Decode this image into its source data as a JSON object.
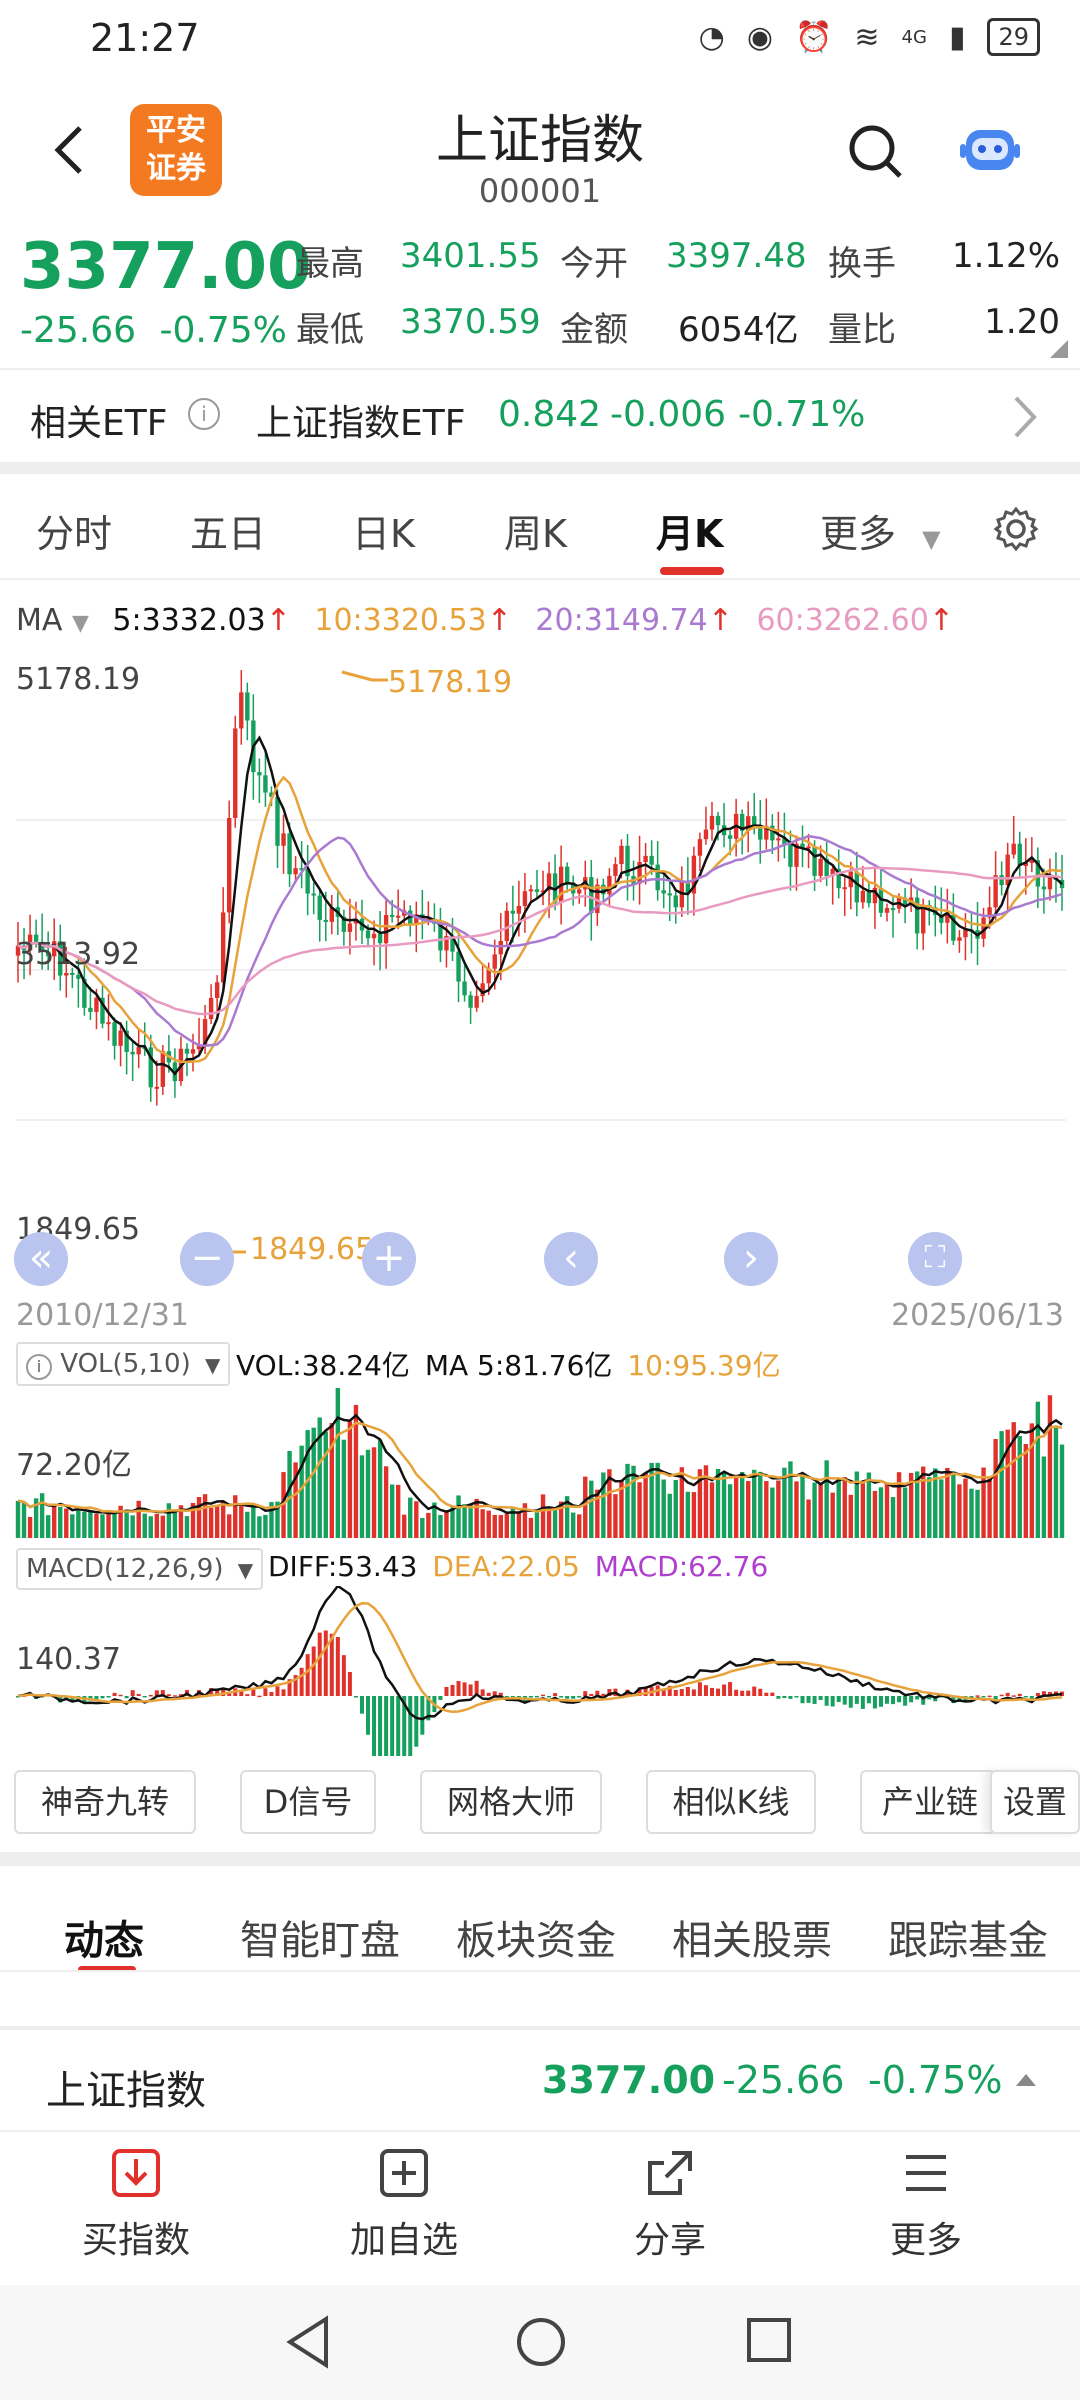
{
  "status_bar": {
    "time": "21:27",
    "battery": "29",
    "network": "4G"
  },
  "header": {
    "title": "上证指数",
    "code": "000001",
    "logo_text": [
      "平安",
      "证券"
    ]
  },
  "quote": {
    "price": "3377.00",
    "change": "-25.66",
    "change_pct": "-0.75%",
    "fields": [
      {
        "label": "最高",
        "value": "3401.55"
      },
      {
        "label": "今开",
        "value": "3397.48"
      },
      {
        "label": "换手",
        "value": "1.12%"
      },
      {
        "label": "最低",
        "value": "3370.59"
      },
      {
        "label": "金额",
        "value": "6054亿"
      },
      {
        "label": "量比",
        "value": "1.20"
      }
    ]
  },
  "etf": {
    "label": "相关ETF",
    "name": "上证指数ETF",
    "price": "0.842",
    "change": "-0.006",
    "change_pct": "-0.71%"
  },
  "tabs": [
    "分时",
    "五日",
    "日K",
    "周K",
    "月K",
    "更多"
  ],
  "active_tab": "月K",
  "ma_legend": {
    "title": "MA",
    "ma5": "5:3332.03",
    "ma10": "10:3320.53",
    "ma20": "20:3149.74",
    "ma60": "60:3262.60"
  },
  "main_chart": {
    "y_labels": [
      "5178.19",
      "3513.92",
      "1849.65"
    ],
    "max_marker": "5178.19",
    "min_marker": "1849.65",
    "start_date": "2010/12/31",
    "end_date": "2025/06/13"
  },
  "vol": {
    "selector": "VOL(5,10)",
    "vol": "VOL:38.24亿",
    "ma5": "MA 5:81.76亿",
    "ma10": "10:95.39亿",
    "y_label": "72.20亿"
  },
  "macd": {
    "selector": "MACD(12,26,9)",
    "diff": "DIFF:53.43",
    "dea": "DEA:22.05",
    "macd": "MACD:62.76",
    "y_label": "140.37"
  },
  "tools": [
    "神奇九转",
    "D信号",
    "网格大师",
    "相似K线",
    "产业链",
    "设置"
  ],
  "bottom_tabs": [
    "动态",
    "智能盯盘",
    "板块资金",
    "相关股票",
    "跟踪基金"
  ],
  "summary": {
    "name": "上证指数",
    "price": "3377.00",
    "change": "-25.66",
    "change_pct": "-0.75%"
  },
  "actions": [
    "买指数",
    "加自选",
    "分享",
    "更多"
  ],
  "colors": {
    "up": "#e0322b",
    "down": "#16a05d",
    "ma5": "#111111",
    "ma10": "#e8a23a",
    "ma20": "#a97ad0",
    "ma60": "#e89ac0",
    "brand": "#f47a22"
  }
}
